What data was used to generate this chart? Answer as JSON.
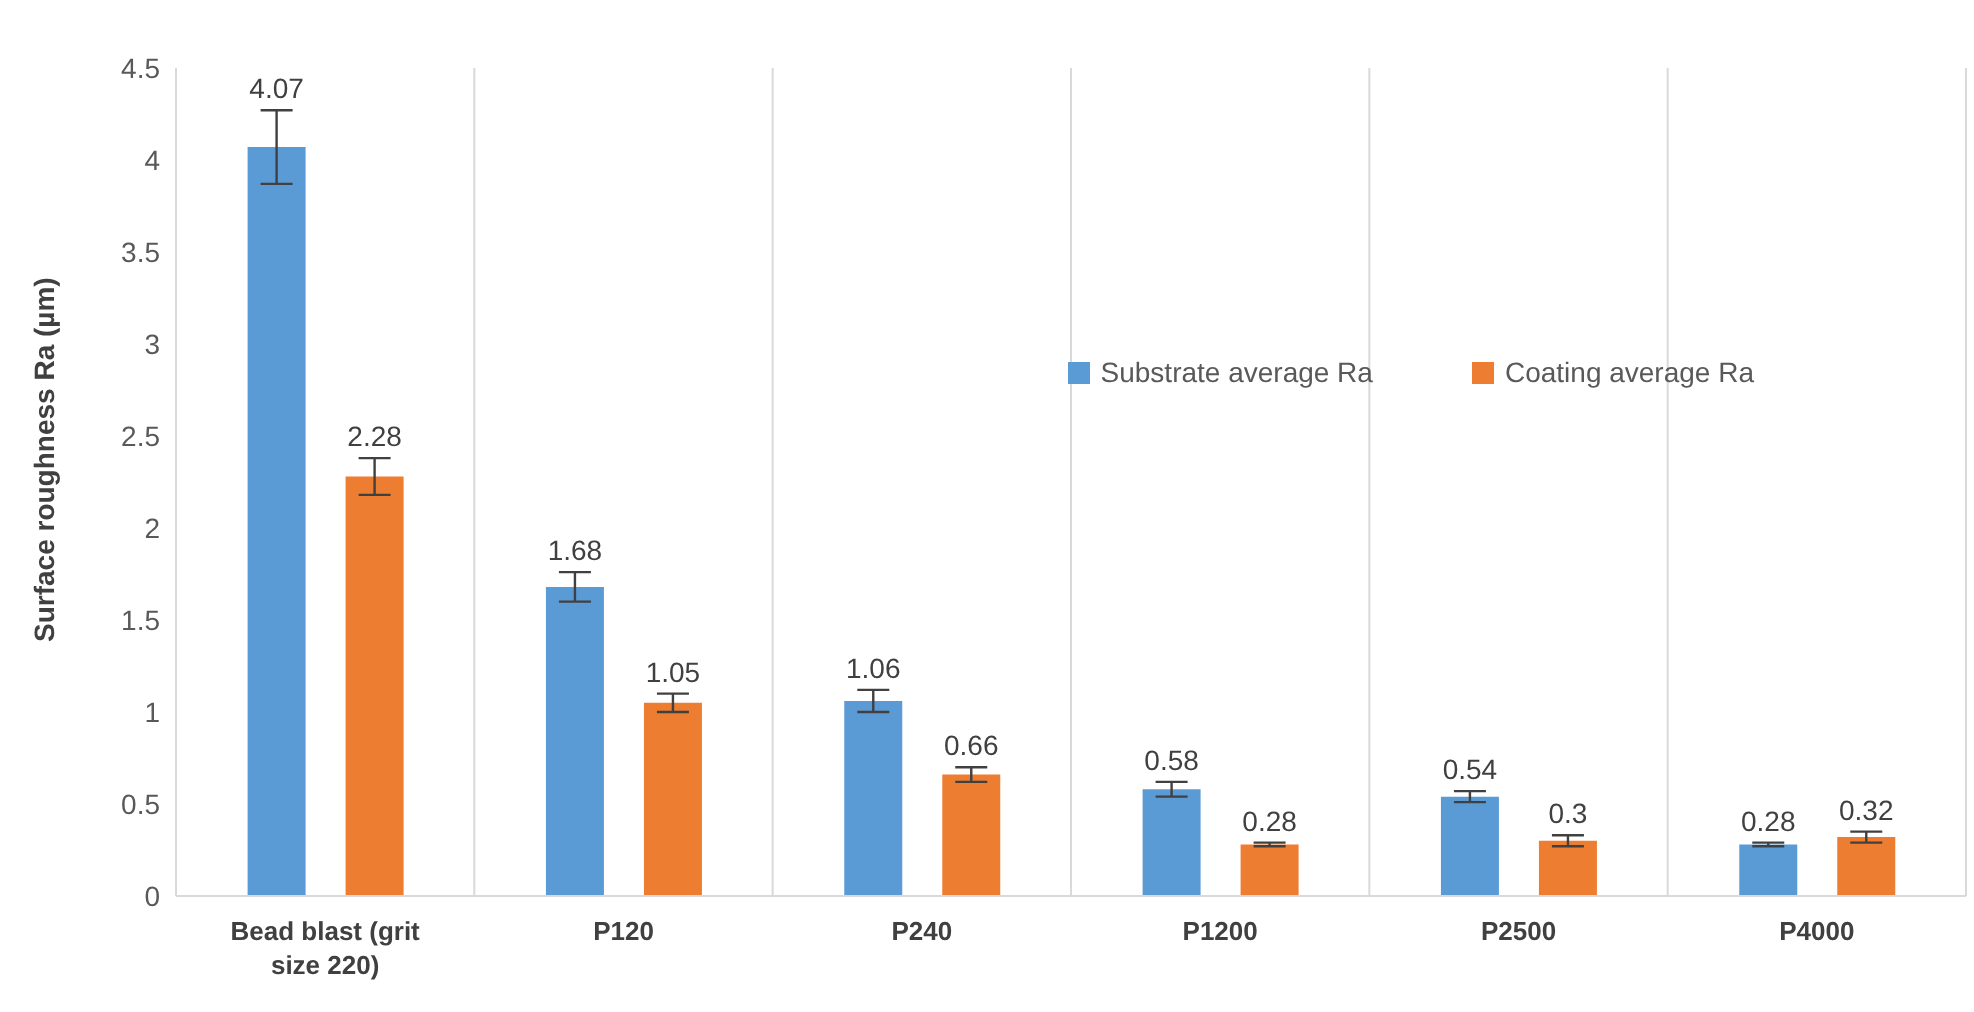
{
  "chart_data": {
    "type": "bar",
    "ylabel": "Surface roughness Ra (µm)",
    "categories": [
      "Bead blast (grit size 220)",
      "P120",
      "P240",
      "P1200",
      "P2500",
      "P4000"
    ],
    "series": [
      {
        "name": "Substrate average Ra",
        "color": "#5b9bd5",
        "values": [
          4.07,
          1.68,
          1.06,
          0.58,
          0.54,
          0.28
        ],
        "errors": [
          0.2,
          0.08,
          0.06,
          0.04,
          0.03,
          0.01
        ]
      },
      {
        "name": "Coating average Ra",
        "color": "#ed7d31",
        "values": [
          2.28,
          1.05,
          0.66,
          0.28,
          0.3,
          0.32
        ],
        "errors": [
          0.1,
          0.05,
          0.04,
          0.01,
          0.03,
          0.03
        ]
      }
    ],
    "ylim": [
      0,
      4.5
    ],
    "yticks": [
      0,
      0.5,
      1,
      1.5,
      2,
      2.5,
      3,
      3.5,
      4,
      4.5
    ],
    "grid": "x",
    "legend": "right",
    "data_labels": true
  }
}
